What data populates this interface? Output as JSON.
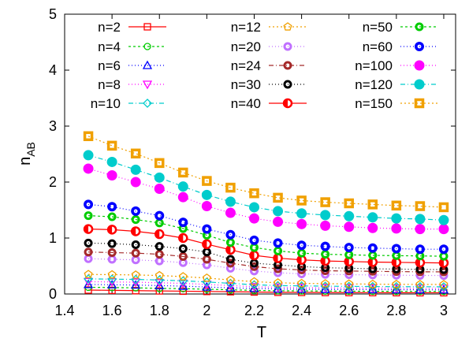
{
  "chart_data": {
    "type": "scatter",
    "xlabel": "T",
    "ylabel_main": "n",
    "ylabel_sub": "AB",
    "xlim": [
      1.4,
      3.05
    ],
    "ylim": [
      0,
      5
    ],
    "xticks": [
      "1.4",
      "1.6",
      "1.8",
      "2",
      "2.2",
      "2.4",
      "2.6",
      "2.8",
      "3"
    ],
    "yticks": [
      "0",
      "1",
      "2",
      "3",
      "4",
      "5"
    ],
    "grid": false,
    "legend_placement": "top",
    "x": [
      1.5,
      1.6,
      1.7,
      1.8,
      1.9,
      2.0,
      2.1,
      2.2,
      2.3,
      2.4,
      2.5,
      2.6,
      2.7,
      2.8,
      2.9,
      3.0
    ],
    "series": [
      {
        "name": "n=2",
        "color": "#ff0000",
        "dash": "",
        "marker": "square",
        "values": [
          0.07,
          0.065,
          0.06,
          0.055,
          0.05,
          0.045,
          0.04,
          0.035,
          0.03,
          0.028,
          0.026,
          0.025,
          0.024,
          0.023,
          0.022,
          0.022
        ]
      },
      {
        "name": "n=4",
        "color": "#00cc00",
        "dash": "3,3",
        "marker": "circle",
        "values": [
          0.12,
          0.115,
          0.11,
          0.1,
          0.095,
          0.085,
          0.075,
          0.065,
          0.058,
          0.055,
          0.052,
          0.05,
          0.048,
          0.047,
          0.046,
          0.045
        ]
      },
      {
        "name": "n=6",
        "color": "#0000ff",
        "dash": "1,3",
        "marker": "triangle-up",
        "values": [
          0.17,
          0.165,
          0.16,
          0.15,
          0.14,
          0.125,
          0.11,
          0.1,
          0.09,
          0.085,
          0.082,
          0.08,
          0.078,
          0.076,
          0.075,
          0.074
        ]
      },
      {
        "name": "n=8",
        "color": "#ff00ff",
        "dash": "1,3",
        "marker": "triangle-down",
        "values": [
          0.22,
          0.215,
          0.21,
          0.2,
          0.19,
          0.17,
          0.15,
          0.13,
          0.12,
          0.115,
          0.11,
          0.107,
          0.105,
          0.103,
          0.102,
          0.1
        ]
      },
      {
        "name": "n=10",
        "color": "#00cccc",
        "dash": "6,3,1,3",
        "marker": "diamond",
        "values": [
          0.27,
          0.265,
          0.26,
          0.25,
          0.235,
          0.215,
          0.19,
          0.165,
          0.15,
          0.145,
          0.14,
          0.136,
          0.133,
          0.131,
          0.13,
          0.128
        ]
      },
      {
        "name": "n=12",
        "color": "#f0a000",
        "dash": "2,3",
        "marker": "pentagon",
        "values": [
          0.35,
          0.345,
          0.34,
          0.33,
          0.31,
          0.285,
          0.25,
          0.22,
          0.2,
          0.19,
          0.185,
          0.18,
          0.176,
          0.173,
          0.171,
          0.17
        ]
      },
      {
        "name": "n=20",
        "color": "#c070ff",
        "dash": "1,3",
        "marker": "ring",
        "values": [
          0.63,
          0.62,
          0.61,
          0.59,
          0.56,
          0.52,
          0.46,
          0.41,
          0.38,
          0.36,
          0.35,
          0.345,
          0.34,
          0.335,
          0.332,
          0.33
        ]
      },
      {
        "name": "n=24",
        "color": "#a52a2a",
        "dash": "6,3,1,3",
        "marker": "ring",
        "values": [
          0.75,
          0.74,
          0.73,
          0.71,
          0.67,
          0.62,
          0.55,
          0.49,
          0.45,
          0.43,
          0.415,
          0.41,
          0.405,
          0.4,
          0.397,
          0.395
        ]
      },
      {
        "name": "n=30",
        "color": "#000000",
        "dash": "1,3",
        "marker": "ring",
        "values": [
          0.91,
          0.9,
          0.88,
          0.85,
          0.81,
          0.75,
          0.62,
          0.55,
          0.52,
          0.49,
          0.47,
          0.46,
          0.45,
          0.445,
          0.44,
          0.435
        ]
      },
      {
        "name": "n=40",
        "color": "#ff0000",
        "dash": "",
        "marker": "half-circle",
        "values": [
          1.16,
          1.15,
          1.12,
          1.07,
          1.0,
          0.89,
          0.79,
          0.69,
          0.64,
          0.61,
          0.59,
          0.58,
          0.57,
          0.565,
          0.56,
          0.555
        ]
      },
      {
        "name": "n=50",
        "color": "#00cc00",
        "dash": "3,3",
        "marker": "ring",
        "values": [
          1.4,
          1.38,
          1.33,
          1.27,
          1.17,
          1.05,
          0.92,
          0.83,
          0.77,
          0.73,
          0.71,
          0.7,
          0.69,
          0.685,
          0.68,
          0.675
        ]
      },
      {
        "name": "n=60",
        "color": "#0000ff",
        "dash": "1,3",
        "marker": "ring-bold",
        "values": [
          1.6,
          1.56,
          1.48,
          1.4,
          1.28,
          1.16,
          1.06,
          0.96,
          0.91,
          0.87,
          0.85,
          0.83,
          0.82,
          0.81,
          0.8,
          0.8
        ]
      },
      {
        "name": "n=100",
        "color": "#ff00ff",
        "dash": "1,3",
        "marker": "disc",
        "values": [
          2.24,
          2.12,
          2.0,
          1.88,
          1.73,
          1.57,
          1.45,
          1.35,
          1.29,
          1.25,
          1.22,
          1.2,
          1.18,
          1.17,
          1.16,
          1.16
        ]
      },
      {
        "name": "n=120",
        "color": "#00cccc",
        "dash": "6,3,1,3",
        "marker": "disc",
        "values": [
          2.48,
          2.36,
          2.22,
          2.08,
          1.92,
          1.77,
          1.65,
          1.55,
          1.48,
          1.44,
          1.41,
          1.39,
          1.37,
          1.35,
          1.34,
          1.32
        ]
      },
      {
        "name": "n=150",
        "color": "#f0a000",
        "dash": "2,3",
        "marker": "square-bold",
        "values": [
          2.82,
          2.65,
          2.51,
          2.34,
          2.17,
          2.02,
          1.9,
          1.8,
          1.72,
          1.67,
          1.64,
          1.62,
          1.6,
          1.58,
          1.57,
          1.55
        ]
      }
    ]
  }
}
